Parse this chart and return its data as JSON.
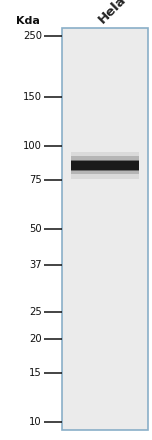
{
  "title": "Hela",
  "kda_label": "Kda",
  "ladder_marks": [
    250,
    150,
    100,
    75,
    50,
    37,
    25,
    20,
    15,
    10
  ],
  "panel_bg": "#e8ecf0",
  "outer_bg": "#ffffff",
  "border_color": "#8aafc8",
  "ladder_line_color": "#111111",
  "band_kda": 85,
  "band_color_center": "#111111",
  "title_fontsize": 9.5,
  "label_fontsize": 7.2,
  "kda_fontsize": 8.0
}
